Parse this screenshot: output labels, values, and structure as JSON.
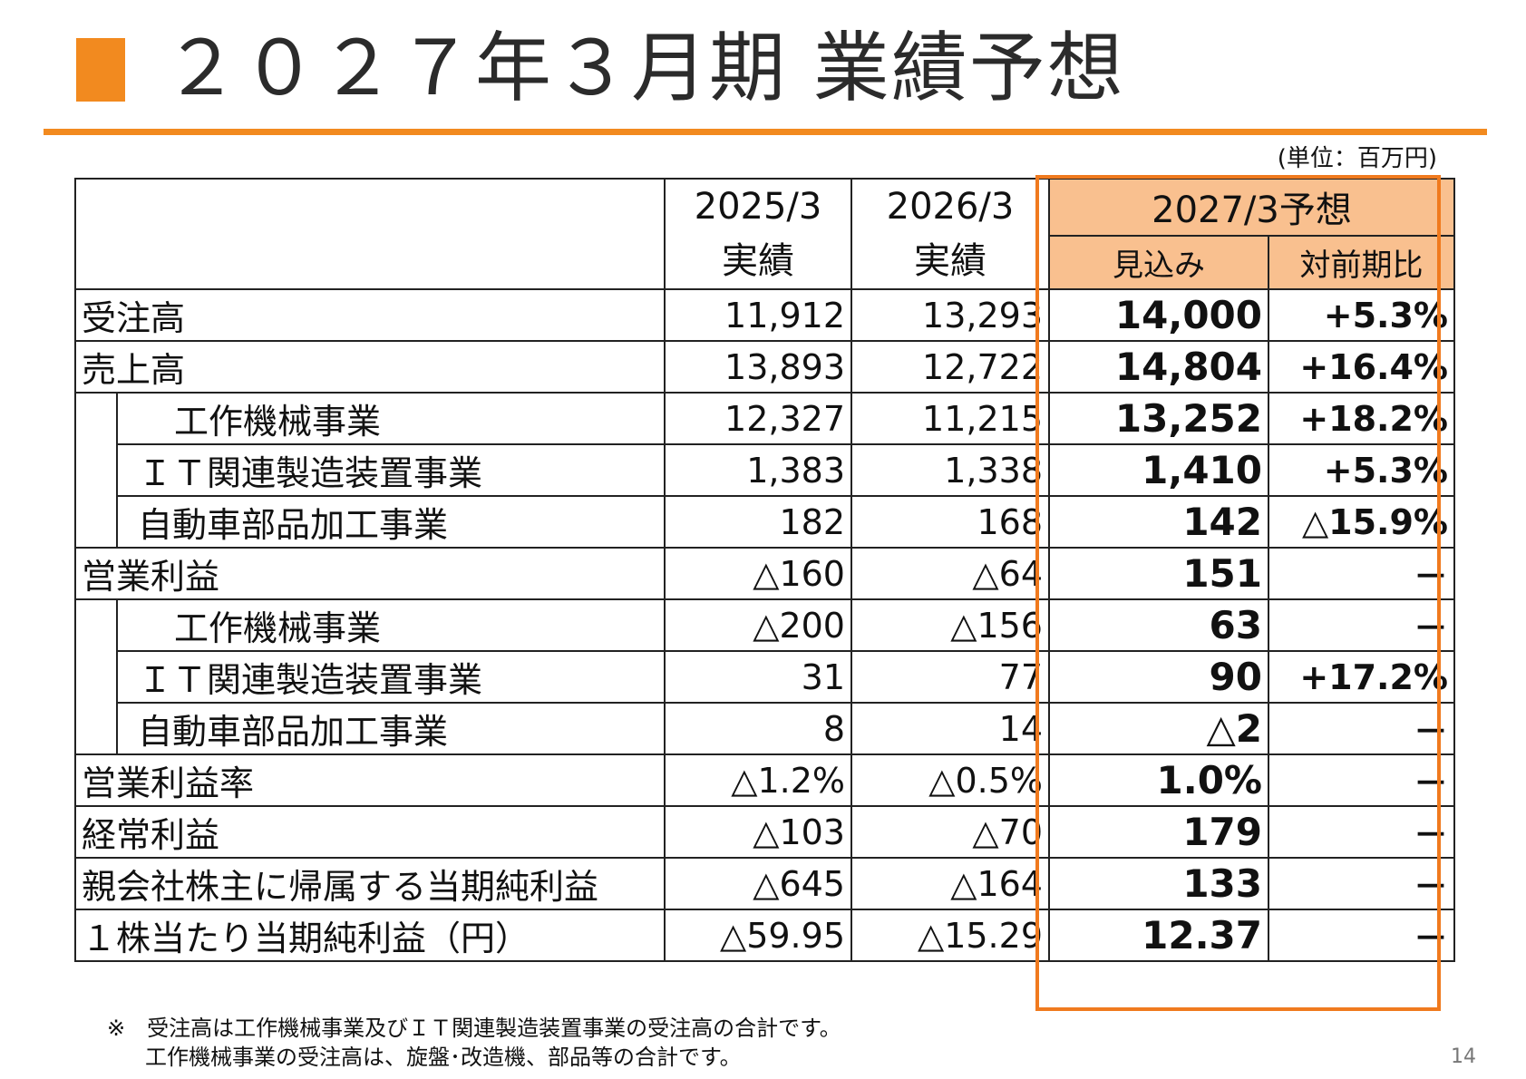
{
  "header": {
    "title": "２０２７年３月期 業績予想",
    "accent_color": "#f28a1f",
    "unit_note": "(単位：百万円)"
  },
  "table": {
    "columns": {
      "y2025": {
        "year": "2025/3",
        "sub": "実績"
      },
      "y2026": {
        "year": "2026/3",
        "sub": "実績"
      },
      "forecast": {
        "title": "2027/3予想",
        "estimate": "見込み",
        "ratio": "対前期比"
      }
    },
    "rows": [
      {
        "label": "受注高",
        "v2025": "11,912",
        "v2026": "13,293",
        "forecast": "14,000",
        "ratio": "+5.3%"
      },
      {
        "label": "売上高",
        "v2025": "13,893",
        "v2026": "12,722",
        "forecast": "14,804",
        "ratio": "+16.4%"
      },
      {
        "label": "工作機械事業",
        "v2025": "12,327",
        "v2026": "11,215",
        "forecast": "13,252",
        "ratio": "+18.2%"
      },
      {
        "label": "ＩＴ関連製造装置事業",
        "v2025": "1,383",
        "v2026": "1,338",
        "forecast": "1,410",
        "ratio": "+5.3%"
      },
      {
        "label": "自動車部品加工事業",
        "v2025": "182",
        "v2026": "168",
        "forecast": "142",
        "ratio": "△15.9%"
      },
      {
        "label": "営業利益",
        "v2025": "△160",
        "v2026": "△64",
        "forecast": "151",
        "ratio": "－"
      },
      {
        "label": "工作機械事業",
        "v2025": "△200",
        "v2026": "△156",
        "forecast": "63",
        "ratio": "－"
      },
      {
        "label": "ＩＴ関連製造装置事業",
        "v2025": "31",
        "v2026": "77",
        "forecast": "90",
        "ratio": "+17.2%"
      },
      {
        "label": "自動車部品加工事業",
        "v2025": "8",
        "v2026": "14",
        "forecast": "△2",
        "ratio": "－"
      },
      {
        "label": "営業利益率",
        "v2025": "△1.2%",
        "v2026": "△0.5%",
        "forecast": "1.0%",
        "ratio": "－"
      },
      {
        "label": "経常利益",
        "v2025": "△103",
        "v2026": "△70",
        "forecast": "179",
        "ratio": "－"
      },
      {
        "label": "親会社株主に帰属する当期純利益",
        "v2025": "△645",
        "v2026": "△164",
        "forecast": "133",
        "ratio": "－"
      },
      {
        "label": "１株当たり当期純利益（円）",
        "v2025": "△59.95",
        "v2026": "△15.29",
        "forecast": "12.37",
        "ratio": "－"
      }
    ]
  },
  "footnote": {
    "line1": "※　受注高は工作機械事業及びＩＴ関連製造装置事業の受注高の合計です。",
    "line2": "工作機械事業の受注高は、旋盤･改造機、部品等の合計です。"
  },
  "page_number": "14"
}
